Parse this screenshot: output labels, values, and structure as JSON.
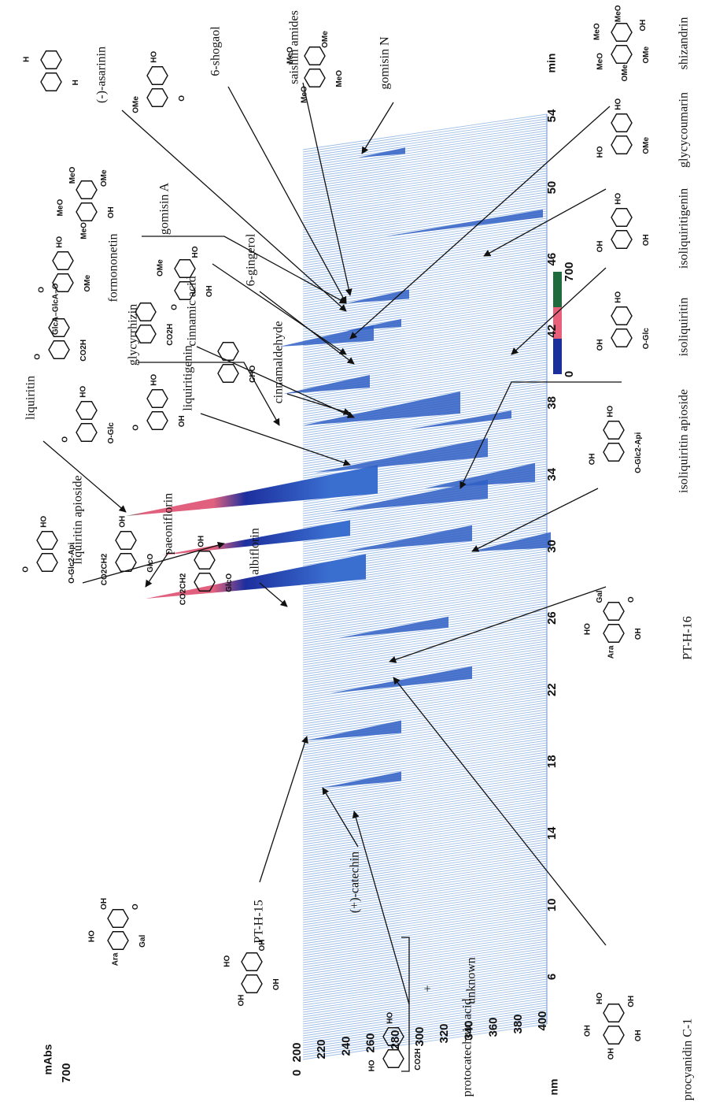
{
  "axes": {
    "absorbance": {
      "unit": "mAbs",
      "ticks": [
        0,
        700
      ]
    },
    "wavelength": {
      "unit": "nm",
      "ticks": [
        200,
        220,
        240,
        260,
        280,
        300,
        320,
        340,
        360,
        380,
        400
      ]
    },
    "time": {
      "unit": "min",
      "ticks": [
        6,
        10,
        14,
        18,
        22,
        26,
        30,
        34,
        38,
        42,
        46,
        50,
        54
      ]
    }
  },
  "color_scale": {
    "ticks": [
      0,
      700
    ]
  },
  "compounds": [
    {
      "label": "(-)-asarinin",
      "atoms": [
        "H",
        "H"
      ]
    },
    {
      "label": "6-shogaol",
      "atoms": [
        "O",
        "OMe",
        "HO"
      ]
    },
    {
      "label": "saishin amides",
      "atoms": []
    },
    {
      "label": "gomisin N",
      "atoms": [
        "MeO",
        "MeO",
        "MeO",
        "OMe"
      ]
    },
    {
      "label": "gomisin A",
      "atoms": [
        "OH",
        "MeO",
        "MeO",
        "MeO",
        "OMe"
      ]
    },
    {
      "label": "formononetin",
      "atoms": [
        "OMe",
        "O",
        "HO"
      ]
    },
    {
      "label": "6-gingerol",
      "atoms": [
        "OH",
        "O",
        "OMe",
        "HO"
      ]
    },
    {
      "label": "glycyrrhizin",
      "atoms": [
        "CO2H",
        "O",
        "GlcA–GlcA–O"
      ]
    },
    {
      "label": "cinnamic acid",
      "atoms": [
        "CO2H"
      ]
    },
    {
      "label": "cinnamaldehyde",
      "atoms": [
        "CHO"
      ]
    },
    {
      "label": "liquiritigenin",
      "atoms": [
        "OH",
        "O",
        "HO"
      ]
    },
    {
      "label": "liquiritin",
      "atoms": [
        "O-Glc",
        "O",
        "HO"
      ]
    },
    {
      "label": "liquiritin apioside",
      "atoms": [
        "O-Glc2-Api",
        "O",
        "HO"
      ]
    },
    {
      "label": "paeoniflorin",
      "atoms": [
        "GlcO",
        "CO2CH2",
        "OH"
      ]
    },
    {
      "label": "albiflorin",
      "atoms": [
        "GlcO",
        "CO2CH2",
        "OH"
      ]
    },
    {
      "label": "PT-H-15",
      "atoms": [
        "Gal",
        "Ara",
        "HO",
        "OH",
        "O"
      ]
    },
    {
      "label": "(+)-catechin",
      "atoms": [
        "OH",
        "OH",
        "HO",
        "OH"
      ]
    },
    {
      "label": "protocatechuic acid",
      "atoms": [
        "CO2H",
        "HO",
        "HO"
      ]
    },
    {
      "label": "procyanidin C-1",
      "atoms": [
        "OH",
        "OH",
        "OH",
        "HO",
        "OH"
      ]
    },
    {
      "label": "PT-H-16",
      "atoms": [
        "OH",
        "Ara",
        "HO",
        "Gal",
        "O"
      ]
    },
    {
      "label": "isoliquiritin apioside",
      "atoms": [
        "O-Glc2-Api",
        "OH",
        "HO"
      ]
    },
    {
      "label": "isoliquiritin",
      "atoms": [
        "O-Glc",
        "OH",
        "HO"
      ]
    },
    {
      "label": "isoliquiritigenin",
      "atoms": [
        "OH",
        "OH",
        "HO"
      ]
    },
    {
      "label": "glycycoumarin",
      "atoms": [
        "OMe",
        "HO",
        "HO"
      ]
    },
    {
      "label": "shizandrin",
      "atoms": [
        "OMe",
        "OMe",
        "MeO",
        "MeO",
        "MeO",
        "OH"
      ]
    }
  ],
  "annotations": {
    "plus": "+",
    "unknown": "unknown"
  }
}
